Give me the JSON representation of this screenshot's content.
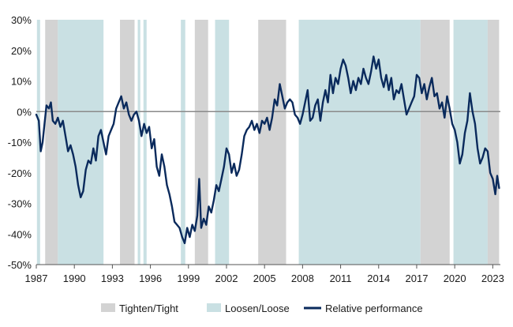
{
  "chart_data": {
    "type": "line",
    "title": "",
    "xlabel": "",
    "ylabel": "",
    "xlim": [
      1987,
      2023.6
    ],
    "ylim": [
      -50,
      30
    ],
    "y_ticks": [
      30,
      20,
      10,
      0,
      -10,
      -20,
      -30,
      -40,
      -50
    ],
    "y_tick_labels": [
      "30%",
      "20%",
      "10%",
      "0%",
      "-10%",
      "-20%",
      "-30%",
      "-40%",
      "-50%"
    ],
    "x_ticks": [
      1987,
      1990,
      1993,
      1996,
      1999,
      2002,
      2005,
      2008,
      2011,
      2014,
      2017,
      2020,
      2023
    ],
    "x_tick_labels": [
      "1987",
      "1990",
      "1993",
      "1996",
      "1999",
      "2002",
      "2005",
      "2008",
      "2011",
      "2014",
      "2017",
      "2020",
      "2023"
    ],
    "grid": false,
    "legend_position": "bottom",
    "legend": [
      {
        "label": "Tighten/Tight",
        "kind": "band",
        "color": "#d3d3d3"
      },
      {
        "label": "Loosen/Loose",
        "kind": "band",
        "color": "#c9e0e3"
      },
      {
        "label": "Relative performance",
        "kind": "line",
        "color": "#0a2a5c"
      }
    ],
    "bands": [
      {
        "kind": "loosen",
        "start": 1987.05,
        "end": 1987.3
      },
      {
        "kind": "tighten",
        "start": 1987.7,
        "end": 1988.7
      },
      {
        "kind": "loosen",
        "start": 1988.7,
        "end": 1992.3
      },
      {
        "kind": "tighten",
        "start": 1993.6,
        "end": 1994.75
      },
      {
        "kind": "loosen",
        "start": 1995.0,
        "end": 1995.2
      },
      {
        "kind": "loosen",
        "start": 1995.45,
        "end": 1995.7
      },
      {
        "kind": "loosen",
        "start": 1998.4,
        "end": 1998.75
      },
      {
        "kind": "tighten",
        "start": 1999.5,
        "end": 2000.55
      },
      {
        "kind": "loosen",
        "start": 2001.1,
        "end": 2002.2
      },
      {
        "kind": "tighten",
        "start": 2004.5,
        "end": 2006.7
      },
      {
        "kind": "loosen",
        "start": 2007.7,
        "end": 2017.3
      },
      {
        "kind": "tighten",
        "start": 2017.3,
        "end": 2019.6
      },
      {
        "kind": "loosen",
        "start": 2019.9,
        "end": 2022.6
      },
      {
        "kind": "tighten",
        "start": 2022.6,
        "end": 2023.5
      }
    ],
    "zero_line_color": "#8a8a8a",
    "series": [
      {
        "name": "Relative performance",
        "color": "#0a2a5c",
        "points": [
          [
            1987.0,
            -1
          ],
          [
            1987.2,
            -3
          ],
          [
            1987.35,
            -13
          ],
          [
            1987.5,
            -10
          ],
          [
            1987.65,
            -4
          ],
          [
            1987.8,
            2
          ],
          [
            1988.0,
            1
          ],
          [
            1988.15,
            3
          ],
          [
            1988.3,
            -3
          ],
          [
            1988.5,
            -4
          ],
          [
            1988.7,
            -2
          ],
          [
            1988.9,
            -5
          ],
          [
            1989.1,
            -3
          ],
          [
            1989.3,
            -8
          ],
          [
            1989.5,
            -13
          ],
          [
            1989.7,
            -11
          ],
          [
            1989.9,
            -14
          ],
          [
            1990.1,
            -18
          ],
          [
            1990.3,
            -24
          ],
          [
            1990.5,
            -28
          ],
          [
            1990.7,
            -26
          ],
          [
            1990.9,
            -19
          ],
          [
            1991.1,
            -16
          ],
          [
            1991.3,
            -17
          ],
          [
            1991.5,
            -12
          ],
          [
            1991.7,
            -16
          ],
          [
            1991.9,
            -8
          ],
          [
            1992.1,
            -6
          ],
          [
            1992.3,
            -10
          ],
          [
            1992.5,
            -14
          ],
          [
            1992.7,
            -8
          ],
          [
            1992.9,
            -6
          ],
          [
            1993.1,
            -4
          ],
          [
            1993.3,
            1
          ],
          [
            1993.5,
            3
          ],
          [
            1993.7,
            5
          ],
          [
            1993.9,
            1
          ],
          [
            1994.1,
            3
          ],
          [
            1994.3,
            -1
          ],
          [
            1994.5,
            -3
          ],
          [
            1994.7,
            -1
          ],
          [
            1994.9,
            0
          ],
          [
            1995.1,
            -3
          ],
          [
            1995.3,
            -8
          ],
          [
            1995.5,
            -4
          ],
          [
            1995.7,
            -7
          ],
          [
            1995.9,
            -5
          ],
          [
            1996.1,
            -12
          ],
          [
            1996.3,
            -9
          ],
          [
            1996.5,
            -18
          ],
          [
            1996.7,
            -21
          ],
          [
            1996.9,
            -14
          ],
          [
            1997.1,
            -18
          ],
          [
            1997.3,
            -24
          ],
          [
            1997.5,
            -27
          ],
          [
            1997.7,
            -31
          ],
          [
            1997.9,
            -36
          ],
          [
            1998.1,
            -37
          ],
          [
            1998.3,
            -38
          ],
          [
            1998.5,
            -41
          ],
          [
            1998.7,
            -43
          ],
          [
            1998.9,
            -38
          ],
          [
            1999.1,
            -41
          ],
          [
            1999.3,
            -37
          ],
          [
            1999.5,
            -39
          ],
          [
            1999.7,
            -34
          ],
          [
            1999.85,
            -22
          ],
          [
            2000.0,
            -38
          ],
          [
            2000.2,
            -35
          ],
          [
            2000.4,
            -37
          ],
          [
            2000.6,
            -31
          ],
          [
            2000.8,
            -33
          ],
          [
            2001.0,
            -29
          ],
          [
            2001.2,
            -24
          ],
          [
            2001.4,
            -26
          ],
          [
            2001.6,
            -22
          ],
          [
            2001.8,
            -18
          ],
          [
            2002.0,
            -12
          ],
          [
            2002.2,
            -14
          ],
          [
            2002.4,
            -20
          ],
          [
            2002.6,
            -17
          ],
          [
            2002.8,
            -21
          ],
          [
            2003.0,
            -19
          ],
          [
            2003.2,
            -14
          ],
          [
            2003.4,
            -8
          ],
          [
            2003.6,
            -6
          ],
          [
            2003.8,
            -5
          ],
          [
            2004.0,
            -3
          ],
          [
            2004.2,
            -6
          ],
          [
            2004.4,
            -4
          ],
          [
            2004.6,
            -7
          ],
          [
            2004.8,
            -3
          ],
          [
            2005.0,
            -4
          ],
          [
            2005.2,
            -2
          ],
          [
            2005.4,
            -6
          ],
          [
            2005.6,
            -2
          ],
          [
            2005.8,
            4
          ],
          [
            2006.0,
            2
          ],
          [
            2006.2,
            9
          ],
          [
            2006.4,
            5
          ],
          [
            2006.6,
            1
          ],
          [
            2006.8,
            3
          ],
          [
            2007.0,
            4
          ],
          [
            2007.2,
            3
          ],
          [
            2007.4,
            -1
          ],
          [
            2007.6,
            -2
          ],
          [
            2007.8,
            -4
          ],
          [
            2008.0,
            -1
          ],
          [
            2008.2,
            3
          ],
          [
            2008.4,
            7
          ],
          [
            2008.6,
            -3
          ],
          [
            2008.8,
            -2
          ],
          [
            2009.0,
            2
          ],
          [
            2009.2,
            4
          ],
          [
            2009.4,
            -3
          ],
          [
            2009.6,
            3
          ],
          [
            2009.8,
            7
          ],
          [
            2010.0,
            3
          ],
          [
            2010.2,
            12
          ],
          [
            2010.4,
            6
          ],
          [
            2010.6,
            11
          ],
          [
            2010.8,
            9
          ],
          [
            2011.0,
            14
          ],
          [
            2011.2,
            17
          ],
          [
            2011.4,
            15
          ],
          [
            2011.6,
            11
          ],
          [
            2011.8,
            6
          ],
          [
            2012.0,
            10
          ],
          [
            2012.2,
            7
          ],
          [
            2012.4,
            11
          ],
          [
            2012.6,
            9
          ],
          [
            2012.8,
            14
          ],
          [
            2013.0,
            11
          ],
          [
            2013.2,
            9
          ],
          [
            2013.4,
            13
          ],
          [
            2013.6,
            18
          ],
          [
            2013.8,
            14
          ],
          [
            2014.0,
            17
          ],
          [
            2014.2,
            11
          ],
          [
            2014.4,
            8
          ],
          [
            2014.6,
            12
          ],
          [
            2014.8,
            7
          ],
          [
            2015.0,
            11
          ],
          [
            2015.2,
            4
          ],
          [
            2015.4,
            7
          ],
          [
            2015.6,
            6
          ],
          [
            2015.8,
            9
          ],
          [
            2016.0,
            4
          ],
          [
            2016.2,
            -1
          ],
          [
            2016.4,
            1
          ],
          [
            2016.6,
            3
          ],
          [
            2016.8,
            5
          ],
          [
            2017.0,
            12
          ],
          [
            2017.2,
            11
          ],
          [
            2017.4,
            6
          ],
          [
            2017.6,
            9
          ],
          [
            2017.8,
            4
          ],
          [
            2018.0,
            8
          ],
          [
            2018.2,
            11
          ],
          [
            2018.4,
            5
          ],
          [
            2018.6,
            6
          ],
          [
            2018.8,
            1
          ],
          [
            2019.0,
            3
          ],
          [
            2019.2,
            -2
          ],
          [
            2019.4,
            5
          ],
          [
            2019.6,
            1
          ],
          [
            2019.8,
            -4
          ],
          [
            2020.0,
            -6
          ],
          [
            2020.2,
            -10
          ],
          [
            2020.4,
            -17
          ],
          [
            2020.6,
            -14
          ],
          [
            2020.8,
            -7
          ],
          [
            2021.0,
            -3
          ],
          [
            2021.2,
            6
          ],
          [
            2021.4,
            0
          ],
          [
            2021.6,
            -4
          ],
          [
            2021.8,
            -12
          ],
          [
            2022.0,
            -17
          ],
          [
            2022.2,
            -15
          ],
          [
            2022.4,
            -12
          ],
          [
            2022.6,
            -13
          ],
          [
            2022.8,
            -20
          ],
          [
            2023.0,
            -22
          ],
          [
            2023.2,
            -27
          ],
          [
            2023.35,
            -21
          ],
          [
            2023.5,
            -25
          ]
        ]
      }
    ]
  }
}
